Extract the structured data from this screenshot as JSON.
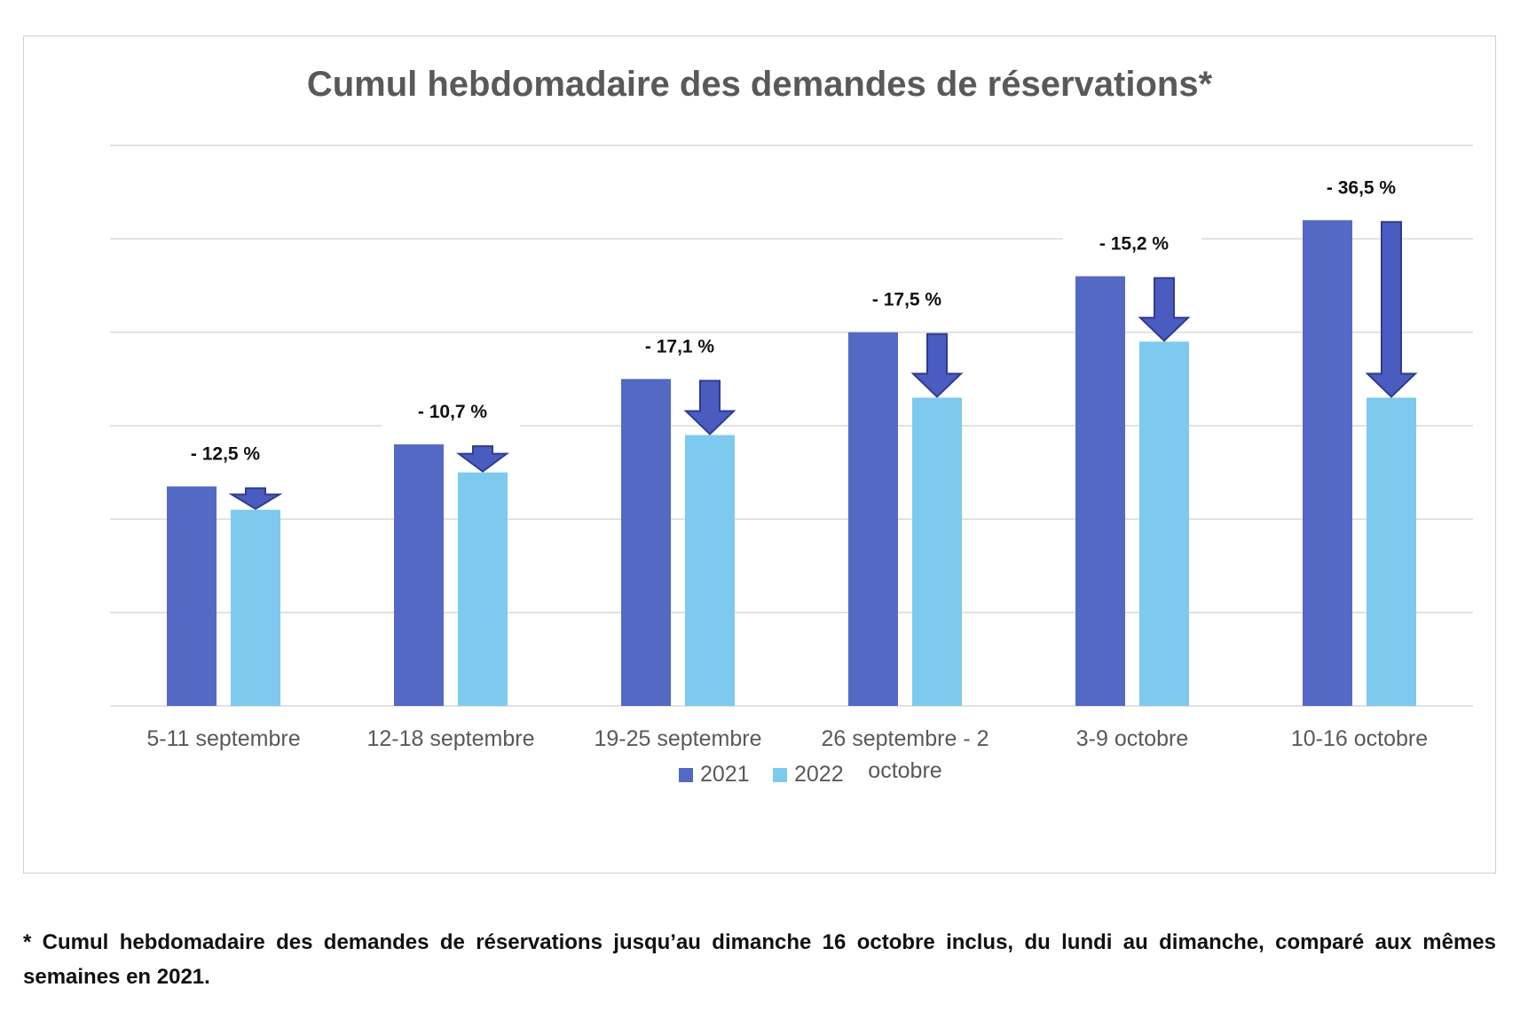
{
  "chart_data": {
    "type": "bar",
    "title": "Cumul hebdomadaire des demandes de réservations*",
    "xlabel": "",
    "ylabel": "",
    "categories": [
      "5-11 septembre",
      "12-18 septembre",
      "19-25 septembre",
      "26 septembre - 2 octobre",
      "3-9 octobre",
      "10-16 octobre"
    ],
    "series": [
      {
        "name": "2021",
        "color": "#5469c4",
        "values": [
          2.35,
          2.8,
          3.5,
          4.0,
          4.6,
          5.2
        ]
      },
      {
        "name": "2022",
        "color": "#7ecaee",
        "values": [
          2.1,
          2.5,
          2.9,
          3.3,
          3.9,
          3.3
        ]
      }
    ],
    "annotations": [
      "- 12,5 %",
      "- 10,7 %",
      "- 17,1 %",
      "- 17,5 %",
      "- 15,2 %",
      "- 36,5 %"
    ],
    "ylim": [
      0,
      6
    ],
    "grid": true,
    "y_tick_labels_shown": false,
    "legend_position": "bottom"
  },
  "footnote": "* Cumul hebdomadaire des demandes de réservations jusqu’au dimanche 16 octobre inclus, du lundi au dimanche, comparé aux mêmes semaines en 2021.",
  "colors": {
    "arrow_fill": "#4a5cc0",
    "arrow_stroke": "#2e3b8f",
    "grid": "#d9d9d9",
    "axis_text": "#595959"
  }
}
